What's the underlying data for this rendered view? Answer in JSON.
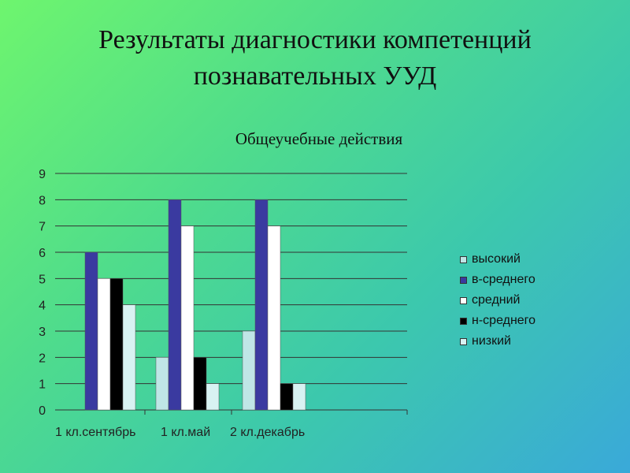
{
  "slide": {
    "title_line1": "Результаты диагностики  компетенций",
    "title_line2": "познавательных УУД"
  },
  "chart_data": {
    "type": "bar",
    "title": "Общеучебные действия",
    "categories": [
      "1 кл.сентябрь",
      "1 кл.май",
      "2 кл.декабрь"
    ],
    "series": [
      {
        "name": "высокий",
        "values": [
          0,
          2,
          3
        ],
        "color": "#bfe6e6"
      },
      {
        "name": "в-среднего",
        "values": [
          6,
          8,
          8
        ],
        "color": "#3a3aa0"
      },
      {
        "name": "средний",
        "values": [
          5,
          7,
          7
        ],
        "color": "#ffffff"
      },
      {
        "name": "н-среднего",
        "values": [
          5,
          2,
          1
        ],
        "color": "#000000"
      },
      {
        "name": "низкий",
        "values": [
          4,
          1,
          1
        ],
        "color": "#d8f2f2"
      }
    ],
    "ylim": [
      0,
      9
    ],
    "yticks": [
      0,
      1,
      2,
      3,
      4,
      5,
      6,
      7,
      8,
      9
    ],
    "grid": true,
    "legend_position": "right"
  }
}
